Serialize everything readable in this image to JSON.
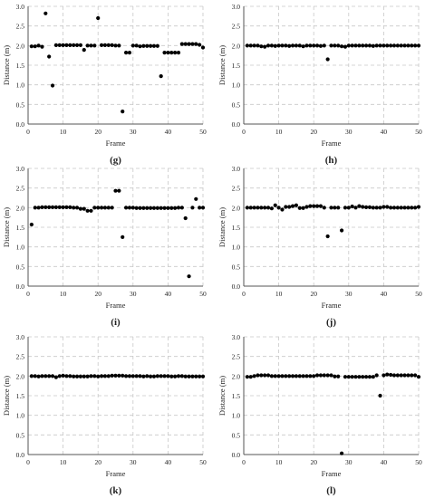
{
  "chart_data": [
    {
      "type": "scatter",
      "panel_label": "(g)",
      "xlabel": "Frame",
      "ylabel": "Distance (m)",
      "xlim": [
        0,
        50
      ],
      "ylim": [
        0,
        3
      ],
      "xticks": [
        "0",
        "10",
        "20",
        "30",
        "40",
        "50"
      ],
      "yticks": [
        "0.0",
        "0.5",
        "1.0",
        "1.5",
        "2.0",
        "2.5",
        "3.0"
      ],
      "grid": "dashed",
      "series": [
        {
          "x": [
            1,
            2,
            3,
            4,
            5,
            6,
            7,
            8,
            9,
            10,
            11,
            12,
            13,
            14,
            15,
            16,
            17,
            18,
            19,
            20,
            21,
            22,
            23,
            24,
            25,
            26,
            27,
            28,
            29,
            30,
            31,
            32,
            33,
            34,
            35,
            36,
            37,
            38,
            39,
            40,
            41,
            42,
            43,
            44,
            45,
            46,
            47,
            48,
            49,
            50
          ],
          "y": [
            1.98,
            1.98,
            2.0,
            1.97,
            2.82,
            1.72,
            0.98,
            2.01,
            2.01,
            2.01,
            2.01,
            2.01,
            2.01,
            2.01,
            2.01,
            1.89,
            2.0,
            2.0,
            2.0,
            2.7,
            2.01,
            2.01,
            2.01,
            2.01,
            2.0,
            2.0,
            0.32,
            1.82,
            1.82,
            2.0,
            2.0,
            1.98,
            1.99,
            1.99,
            1.99,
            1.99,
            1.99,
            1.22,
            1.82,
            1.82,
            1.82,
            1.82,
            1.82,
            2.04,
            2.04,
            2.04,
            2.04,
            2.04,
            2.02,
            1.95
          ]
        }
      ]
    },
    {
      "type": "scatter",
      "panel_label": "(h)",
      "xlabel": "Frame",
      "ylabel": "Distance (m)",
      "xlim": [
        0,
        50
      ],
      "ylim": [
        0,
        3
      ],
      "xticks": [
        "0",
        "10",
        "20",
        "30",
        "40",
        "50"
      ],
      "yticks": [
        "0.0",
        "0.5",
        "1.0",
        "1.5",
        "2.0",
        "2.5",
        "3.0"
      ],
      "grid": "dashed",
      "series": [
        {
          "x": [
            1,
            2,
            3,
            4,
            5,
            6,
            7,
            8,
            9,
            10,
            11,
            12,
            13,
            14,
            15,
            16,
            17,
            18,
            19,
            20,
            21,
            22,
            23,
            24,
            25,
            26,
            27,
            28,
            29,
            30,
            31,
            32,
            33,
            34,
            35,
            36,
            37,
            38,
            39,
            40,
            41,
            42,
            43,
            44,
            45,
            46,
            47,
            48,
            49,
            50
          ],
          "y": [
            2.0,
            2.0,
            2.0,
            2.0,
            1.98,
            1.97,
            2.0,
            2.0,
            1.99,
            2.0,
            2.0,
            2.0,
            1.99,
            2.0,
            2.0,
            2.0,
            1.98,
            2.0,
            2.0,
            2.0,
            2.0,
            1.99,
            2.0,
            1.65,
            2.0,
            2.0,
            2.0,
            1.98,
            1.97,
            2.0,
            2.0,
            2.0,
            2.0,
            2.0,
            2.0,
            2.0,
            1.99,
            2.0,
            2.0,
            2.0,
            2.0,
            2.0,
            2.0,
            2.0,
            2.0,
            2.0,
            2.0,
            2.0,
            2.0,
            2.0
          ]
        }
      ]
    },
    {
      "type": "scatter",
      "panel_label": "(i)",
      "xlabel": "Frame",
      "ylabel": "Distance (m)",
      "xlim": [
        0,
        50
      ],
      "ylim": [
        0,
        3
      ],
      "xticks": [
        "0",
        "10",
        "20",
        "30",
        "40",
        "50"
      ],
      "yticks": [
        "0.0",
        "0.5",
        "1.0",
        "1.5",
        "2.0",
        "2.5",
        "3.0"
      ],
      "grid": "dashed",
      "series": [
        {
          "x": [
            1,
            2,
            3,
            4,
            5,
            6,
            7,
            8,
            9,
            10,
            11,
            12,
            13,
            14,
            15,
            16,
            17,
            18,
            19,
            20,
            21,
            22,
            23,
            24,
            25,
            26,
            27,
            28,
            29,
            30,
            31,
            32,
            33,
            34,
            35,
            36,
            37,
            38,
            39,
            40,
            41,
            42,
            43,
            44,
            45,
            46,
            47,
            48,
            49,
            50
          ],
          "y": [
            1.57,
            2.0,
            2.0,
            2.01,
            2.01,
            2.01,
            2.01,
            2.01,
            2.01,
            2.01,
            2.01,
            2.01,
            2.0,
            2.0,
            1.97,
            1.97,
            1.92,
            1.92,
            2.0,
            2.0,
            2.0,
            2.0,
            2.0,
            2.0,
            2.43,
            2.43,
            1.25,
            2.0,
            2.0,
            2.0,
            1.99,
            1.99,
            1.99,
            1.99,
            1.99,
            1.99,
            1.99,
            1.99,
            1.99,
            1.99,
            1.99,
            1.99,
            2.0,
            2.0,
            1.73,
            0.25,
            2.0,
            2.22,
            2.0,
            2.0
          ]
        }
      ]
    },
    {
      "type": "scatter",
      "panel_label": "(j)",
      "xlabel": "Frame",
      "ylabel": "Distance (m)",
      "xlim": [
        0,
        50
      ],
      "ylim": [
        0,
        3
      ],
      "xticks": [
        "0",
        "10",
        "20",
        "30",
        "40",
        "50"
      ],
      "yticks": [
        "0.0",
        "0.5",
        "1.0",
        "1.5",
        "2.0",
        "2.5",
        "3.0"
      ],
      "grid": "dashed",
      "series": [
        {
          "x": [
            1,
            2,
            3,
            4,
            5,
            6,
            7,
            8,
            9,
            10,
            11,
            12,
            13,
            14,
            15,
            16,
            17,
            18,
            19,
            20,
            21,
            22,
            23,
            24,
            25,
            26,
            27,
            28,
            29,
            30,
            31,
            32,
            33,
            34,
            35,
            36,
            37,
            38,
            39,
            40,
            41,
            42,
            43,
            44,
            45,
            46,
            47,
            48,
            49,
            50
          ],
          "y": [
            2.0,
            2.0,
            2.0,
            2.0,
            2.0,
            2.0,
            2.0,
            1.98,
            2.06,
            2.0,
            1.95,
            2.02,
            2.02,
            2.04,
            2.06,
            1.99,
            1.99,
            2.02,
            2.04,
            2.04,
            2.04,
            2.04,
            2.0,
            1.27,
            2.0,
            2.0,
            2.0,
            1.42,
            2.0,
            2.0,
            2.03,
            2.0,
            2.04,
            2.02,
            2.01,
            2.01,
            2.0,
            2.0,
            2.0,
            2.02,
            2.02,
            2.0,
            2.0,
            2.0,
            2.0,
            2.0,
            2.0,
            2.0,
            2.0,
            2.02
          ]
        }
      ]
    },
    {
      "type": "scatter",
      "panel_label": "(k)",
      "xlabel": "Frame",
      "ylabel": "Distance (m)",
      "xlim": [
        0,
        50
      ],
      "ylim": [
        0,
        3
      ],
      "xticks": [
        "0",
        "10",
        "20",
        "30",
        "40",
        "50"
      ],
      "yticks": [
        "0.0",
        "0.5",
        "1.0",
        "1.5",
        "2.0",
        "2.5",
        "3.0"
      ],
      "grid": "dashed",
      "series": [
        {
          "x": [
            1,
            2,
            3,
            4,
            5,
            6,
            7,
            8,
            9,
            10,
            11,
            12,
            13,
            14,
            15,
            16,
            17,
            18,
            19,
            20,
            21,
            22,
            23,
            24,
            25,
            26,
            27,
            28,
            29,
            30,
            31,
            32,
            33,
            34,
            35,
            36,
            37,
            38,
            39,
            40,
            41,
            42,
            43,
            44,
            45,
            46,
            47,
            48,
            49,
            50
          ],
          "y": [
            2.0,
            2.0,
            1.99,
            2.0,
            2.0,
            2.0,
            2.0,
            1.97,
            2.0,
            2.01,
            2.0,
            2.0,
            1.99,
            1.99,
            1.99,
            1.99,
            1.99,
            2.0,
            2.0,
            1.99,
            2.0,
            2.0,
            2.0,
            2.01,
            2.01,
            2.01,
            2.01,
            2.0,
            2.0,
            2.0,
            2.0,
            2.0,
            1.99,
            2.0,
            1.99,
            1.99,
            2.0,
            2.0,
            2.0,
            2.0,
            1.99,
            1.99,
            2.0,
            2.0,
            1.99,
            1.99,
            1.99,
            1.99,
            1.99,
            1.99
          ]
        }
      ]
    },
    {
      "type": "scatter",
      "panel_label": "(l)",
      "xlabel": "Frame",
      "ylabel": "Distance (m)",
      "xlim": [
        0,
        50
      ],
      "ylim": [
        0,
        3
      ],
      "xticks": [
        "0",
        "10",
        "20",
        "30",
        "40",
        "50"
      ],
      "yticks": [
        "0.0",
        "0.5",
        "1.0",
        "1.5",
        "2.0",
        "2.5",
        "3.0"
      ],
      "grid": "dashed",
      "series": [
        {
          "x": [
            1,
            2,
            3,
            4,
            5,
            6,
            7,
            8,
            9,
            10,
            11,
            12,
            13,
            14,
            15,
            16,
            17,
            18,
            19,
            20,
            21,
            22,
            23,
            24,
            25,
            26,
            27,
            28,
            29,
            30,
            31,
            32,
            33,
            34,
            35,
            36,
            37,
            38,
            39,
            40,
            41,
            42,
            43,
            44,
            45,
            46,
            47,
            48,
            49,
            50
          ],
          "y": [
            1.98,
            1.98,
            2.0,
            2.02,
            2.02,
            2.02,
            2.02,
            2.0,
            2.0,
            2.0,
            2.0,
            2.0,
            2.0,
            2.0,
            2.0,
            2.0,
            2.0,
            2.0,
            2.0,
            2.0,
            2.02,
            2.02,
            2.02,
            2.02,
            2.02,
            1.99,
            1.99,
            0.03,
            1.98,
            1.98,
            1.98,
            1.98,
            1.98,
            1.98,
            1.98,
            1.98,
            1.98,
            2.02,
            1.5,
            2.02,
            2.04,
            2.03,
            2.02,
            2.02,
            2.02,
            2.02,
            2.02,
            2.02,
            2.02,
            1.98
          ]
        }
      ]
    }
  ]
}
